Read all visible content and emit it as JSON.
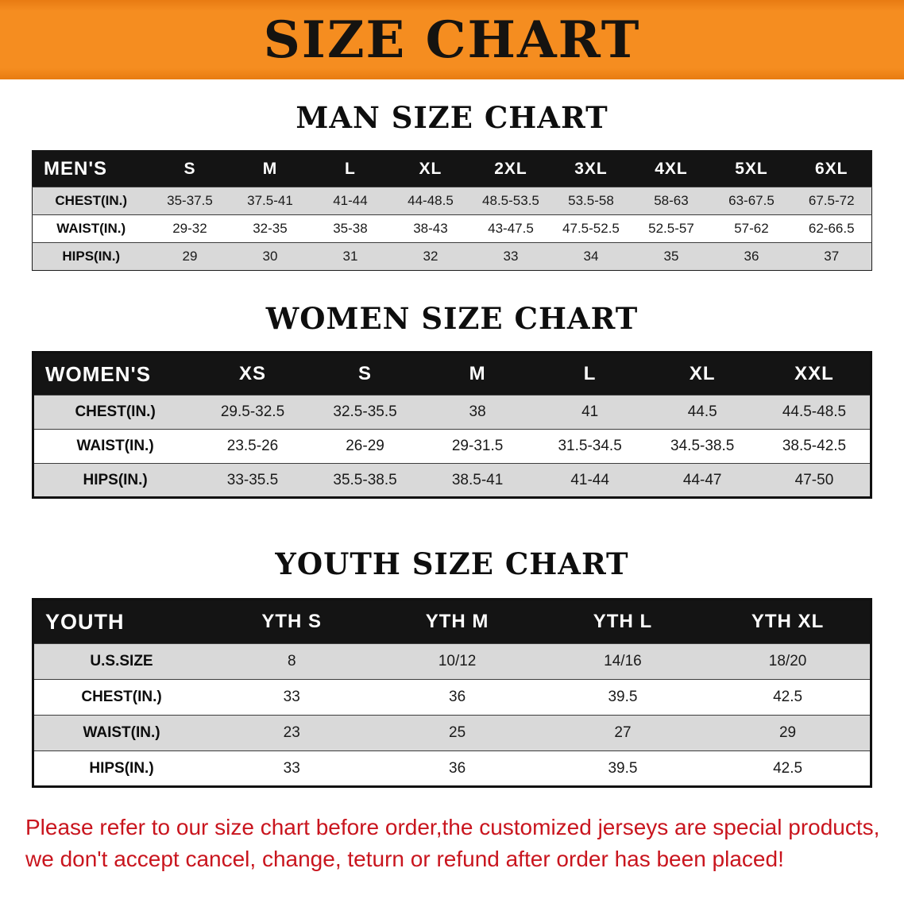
{
  "banner": {
    "title": "SIZE CHART"
  },
  "sections": {
    "men": {
      "heading": "MAN SIZE CHART",
      "table": {
        "header": [
          "MEN'S",
          "S",
          "M",
          "L",
          "XL",
          "2XL",
          "3XL",
          "4XL",
          "5XL",
          "6XL"
        ],
        "rows": [
          [
            "CHEST(IN.)",
            "35-37.5",
            "37.5-41",
            "41-44",
            "44-48.5",
            "48.5-53.5",
            "53.5-58",
            "58-63",
            "63-67.5",
            "67.5-72"
          ],
          [
            "WAIST(IN.)",
            "29-32",
            "32-35",
            "35-38",
            "38-43",
            "43-47.5",
            "47.5-52.5",
            "52.5-57",
            "57-62",
            "62-66.5"
          ],
          [
            "HIPS(IN.)",
            "29",
            "30",
            "31",
            "32",
            "33",
            "34",
            "35",
            "36",
            "37"
          ]
        ]
      }
    },
    "women": {
      "heading": "WOMEN SIZE CHART",
      "table": {
        "header": [
          "WOMEN'S",
          "XS",
          "S",
          "M",
          "L",
          "XL",
          "XXL"
        ],
        "rows": [
          [
            "CHEST(IN.)",
            "29.5-32.5",
            "32.5-35.5",
            "38",
            "41",
            "44.5",
            "44.5-48.5"
          ],
          [
            "WAIST(IN.)",
            "23.5-26",
            "26-29",
            "29-31.5",
            "31.5-34.5",
            "34.5-38.5",
            "38.5-42.5"
          ],
          [
            "HIPS(IN.)",
            "33-35.5",
            "35.5-38.5",
            "38.5-41",
            "41-44",
            "44-47",
            "47-50"
          ]
        ]
      }
    },
    "youth": {
      "heading": "YOUTH SIZE CHART",
      "table": {
        "header": [
          "YOUTH",
          "YTH S",
          "YTH M",
          "YTH L",
          "YTH XL"
        ],
        "rows": [
          [
            "U.S.SIZE",
            "8",
            "10/12",
            "14/16",
            "18/20"
          ],
          [
            "CHEST(IN.)",
            "33",
            "36",
            "39.5",
            "42.5"
          ],
          [
            "WAIST(IN.)",
            "23",
            "25",
            "27",
            "29"
          ],
          [
            "HIPS(IN.)",
            "33",
            "36",
            "39.5",
            "42.5"
          ]
        ]
      }
    }
  },
  "footer": {
    "line1": "Please refer to our size chart before order,the customized jerseys are special products,",
    "line2": "we don't accept cancel, change, teturn or refund after order has been placed!"
  },
  "colors": {
    "banner_bg": "#f58d20",
    "table_header_bg": "#141414",
    "row_alt_bg": "#d9d9d9",
    "disclaimer_text": "#c9151e"
  }
}
